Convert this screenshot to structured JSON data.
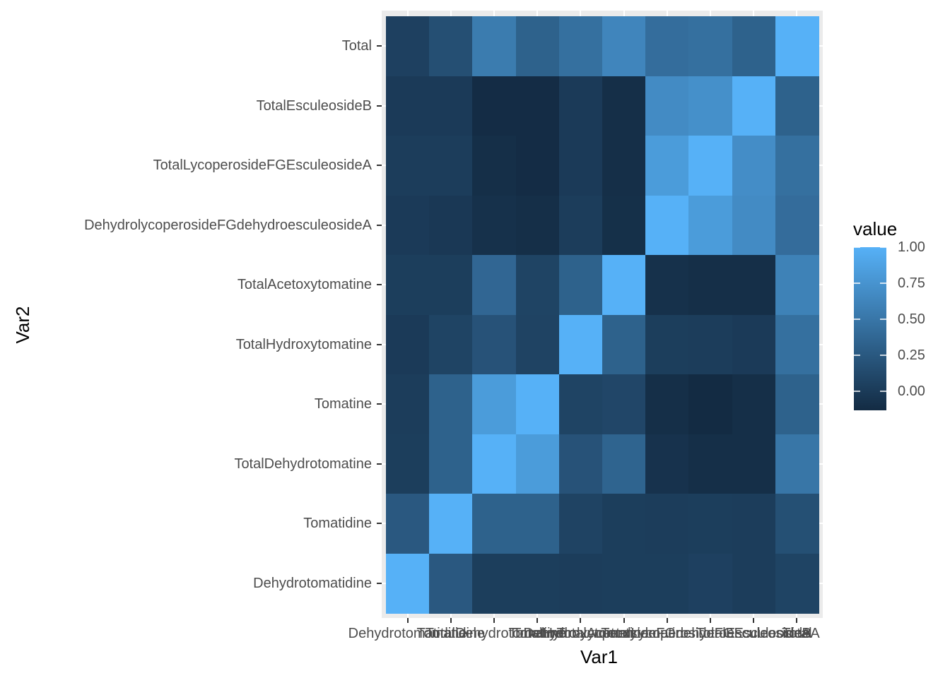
{
  "chart_data": {
    "type": "heatmap",
    "title": "",
    "xlabel": "Var1",
    "ylabel": "Var2",
    "x_categories": [
      "Dehydrotomatidine",
      "Tomatidine",
      "TotalDehydrotomatine",
      "Tomatine",
      "TotalHydroxytomatine",
      "TotalAcetoxytomatine",
      "DehydrolycoperosideFGdehydroesculeosideA",
      "TotalLycoperosideFGEsculeosideA",
      "TotalEsculeosideB",
      "Total"
    ],
    "y_categories_top_to_bottom": [
      "Total",
      "TotalEsculeosideB",
      "TotalLycoperosideFGEsculeosideA",
      "DehydrolycoperosideFGdehydroesculeosideA",
      "TotalAcetoxytomatine",
      "TotalHydroxytomatine",
      "Tomatine",
      "TotalDehydrotomatine",
      "Tomatidine",
      "Dehydrotomatidine"
    ],
    "values_rows_top_to_bottom": [
      [
        0.05,
        0.17,
        0.55,
        0.33,
        0.45,
        0.63,
        0.43,
        0.45,
        0.33,
        1.0
      ],
      [
        0.0,
        0.0,
        -0.12,
        -0.12,
        0.0,
        -0.1,
        0.68,
        0.72,
        1.0,
        0.33
      ],
      [
        0.02,
        0.02,
        -0.1,
        -0.12,
        0.0,
        -0.1,
        0.82,
        1.0,
        0.7,
        0.45
      ],
      [
        0.0,
        -0.02,
        -0.08,
        -0.1,
        0.02,
        -0.09,
        1.0,
        0.82,
        0.68,
        0.42
      ],
      [
        0.03,
        0.03,
        0.37,
        0.08,
        0.33,
        1.0,
        -0.08,
        -0.1,
        -0.1,
        0.6
      ],
      [
        0.0,
        0.08,
        0.2,
        0.07,
        1.0,
        0.33,
        0.03,
        0.02,
        0.0,
        0.45
      ],
      [
        0.02,
        0.33,
        0.82,
        1.0,
        0.08,
        0.1,
        -0.1,
        -0.13,
        -0.1,
        0.33
      ],
      [
        0.03,
        0.33,
        1.0,
        0.82,
        0.2,
        0.35,
        -0.07,
        -0.1,
        -0.1,
        0.5
      ],
      [
        0.25,
        1.0,
        0.33,
        0.33,
        0.07,
        0.03,
        0.02,
        0.03,
        0.02,
        0.18
      ],
      [
        1.0,
        0.25,
        0.03,
        0.03,
        0.02,
        0.03,
        0.03,
        0.05,
        0.02,
        0.08
      ]
    ],
    "legend": {
      "title": "value",
      "position": "right",
      "ticks": [
        "1.00",
        "0.75",
        "0.50",
        "0.25",
        "0.00"
      ],
      "range": [
        -0.13,
        1.0
      ],
      "low_color": "#132B43",
      "high_color": "#56B1F7"
    },
    "grid": true,
    "panel_background": "#EBEBEB"
  }
}
